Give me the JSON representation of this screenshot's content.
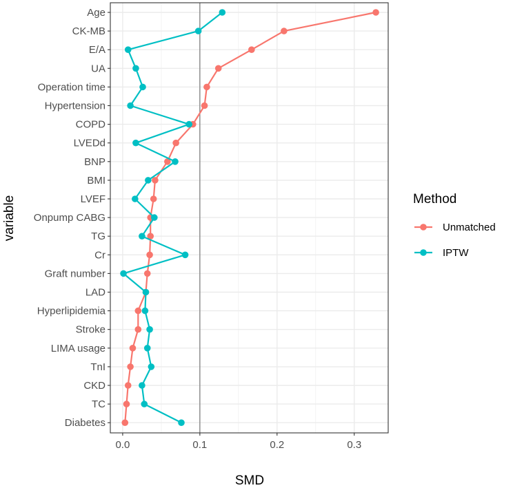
{
  "chart_data": {
    "type": "line",
    "title": "",
    "xlabel": "SMD",
    "ylabel": "variable",
    "xlim": [
      -0.016,
      0.344
    ],
    "x_ticks": [
      0.0,
      0.1,
      0.2,
      0.3
    ],
    "x_tick_labels": [
      "0.0",
      "0.1",
      "0.2",
      "0.3"
    ],
    "reference_line": 0.1,
    "grid": true,
    "legend_title": "Method",
    "legend_position": "right",
    "categories": [
      "Age",
      "CK-MB",
      "E/A",
      "UA",
      "Operation time",
      "Hypertension",
      "COPD",
      "LVEDd",
      "BNP",
      "BMI",
      "LVEF",
      "Onpump CABG",
      "TG",
      "Cr",
      "Graft number",
      "LAD",
      "Hyperlipidemia",
      "Stroke",
      "LIMA usage",
      "TnI",
      "CKD",
      "TC",
      "Diabetes"
    ],
    "series": [
      {
        "name": "Unmatched",
        "color": "#F8766D",
        "values": [
          0.328,
          0.209,
          0.167,
          0.124,
          0.109,
          0.106,
          0.091,
          0.069,
          0.058,
          0.042,
          0.04,
          0.036,
          0.036,
          0.035,
          0.032,
          0.03,
          0.02,
          0.02,
          0.013,
          0.01,
          0.007,
          0.005,
          0.003
        ]
      },
      {
        "name": "IPTW",
        "color": "#00BFC4",
        "values": [
          0.129,
          0.098,
          0.007,
          0.017,
          0.026,
          0.01,
          0.086,
          0.017,
          0.068,
          0.033,
          0.016,
          0.041,
          0.025,
          0.081,
          0.001,
          0.03,
          0.029,
          0.035,
          0.032,
          0.037,
          0.025,
          0.028,
          0.076
        ]
      }
    ]
  }
}
